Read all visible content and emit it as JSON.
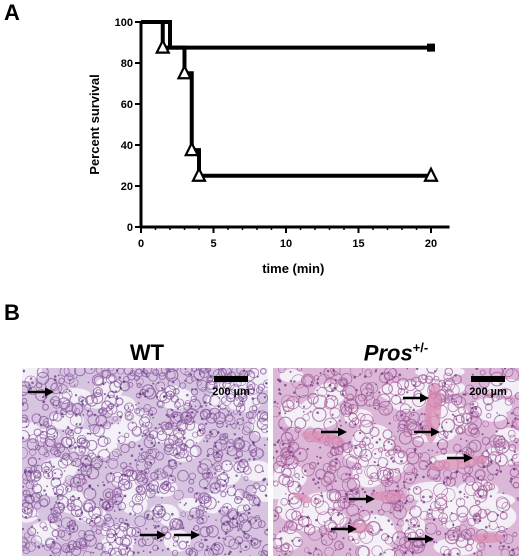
{
  "panels": {
    "a": {
      "letter": "A"
    },
    "b": {
      "letter": "B"
    }
  },
  "chart_data": {
    "type": "line",
    "step": true,
    "xlabel": "time (min)",
    "ylabel": "Percent survival",
    "xlim": [
      0,
      21
    ],
    "ylim": [
      0,
      100
    ],
    "xticks": [
      "0",
      "5",
      "10",
      "15",
      "20"
    ],
    "yticks": [
      "0",
      "20",
      "40",
      "60",
      "80",
      "100"
    ],
    "grid": false,
    "legend": "none",
    "series": [
      {
        "marker": "square",
        "x": [
          0,
          2,
          20
        ],
        "y": [
          100,
          87.5,
          87.5
        ]
      },
      {
        "marker": "triangle",
        "x": [
          0,
          1.5,
          3,
          3.5,
          4,
          20
        ],
        "y": [
          100,
          87.5,
          75,
          37.5,
          25,
          25
        ]
      }
    ]
  },
  "micrographs": {
    "wt": {
      "title": "WT",
      "scale_label": "200 µm"
    },
    "pros": {
      "title_main": "Pros",
      "title_sup": "+/-",
      "scale_label": "200 µm"
    }
  }
}
